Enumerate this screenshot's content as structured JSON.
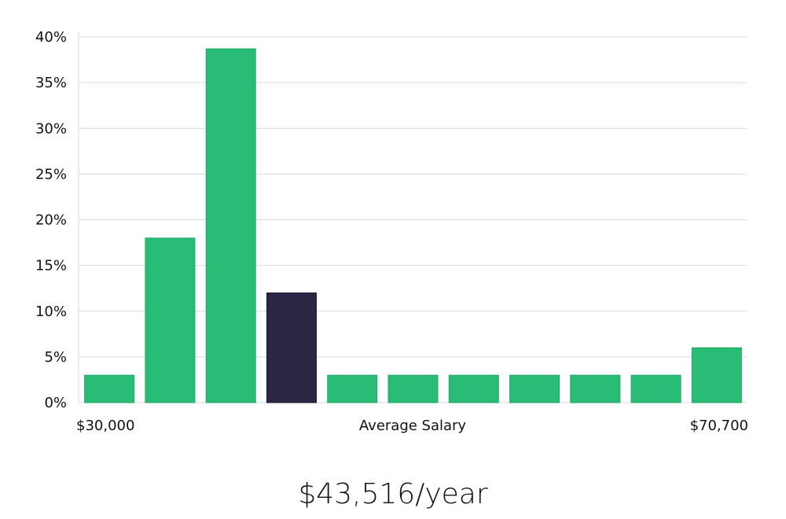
{
  "chart_data": {
    "type": "bar",
    "xlabel": "Average Salary",
    "x_min_label": "$30,000",
    "x_max_label": "$70,700",
    "categories": [
      "1",
      "2",
      "3",
      "4",
      "5",
      "6",
      "7",
      "8",
      "9",
      "10",
      "11"
    ],
    "values": [
      3,
      18,
      38.7,
      12,
      3,
      3,
      3,
      3,
      3,
      3,
      6
    ],
    "highlight_index": 3,
    "ylim": [
      0,
      40
    ],
    "yticks": [
      0,
      5,
      10,
      15,
      20,
      25,
      30,
      35,
      40
    ],
    "ytick_format": "%",
    "grid": true,
    "colors": {
      "bar": "#29bc76",
      "highlight": "#2a2744",
      "grid": "#d9d9d9"
    }
  },
  "headline": "$43,516/year"
}
